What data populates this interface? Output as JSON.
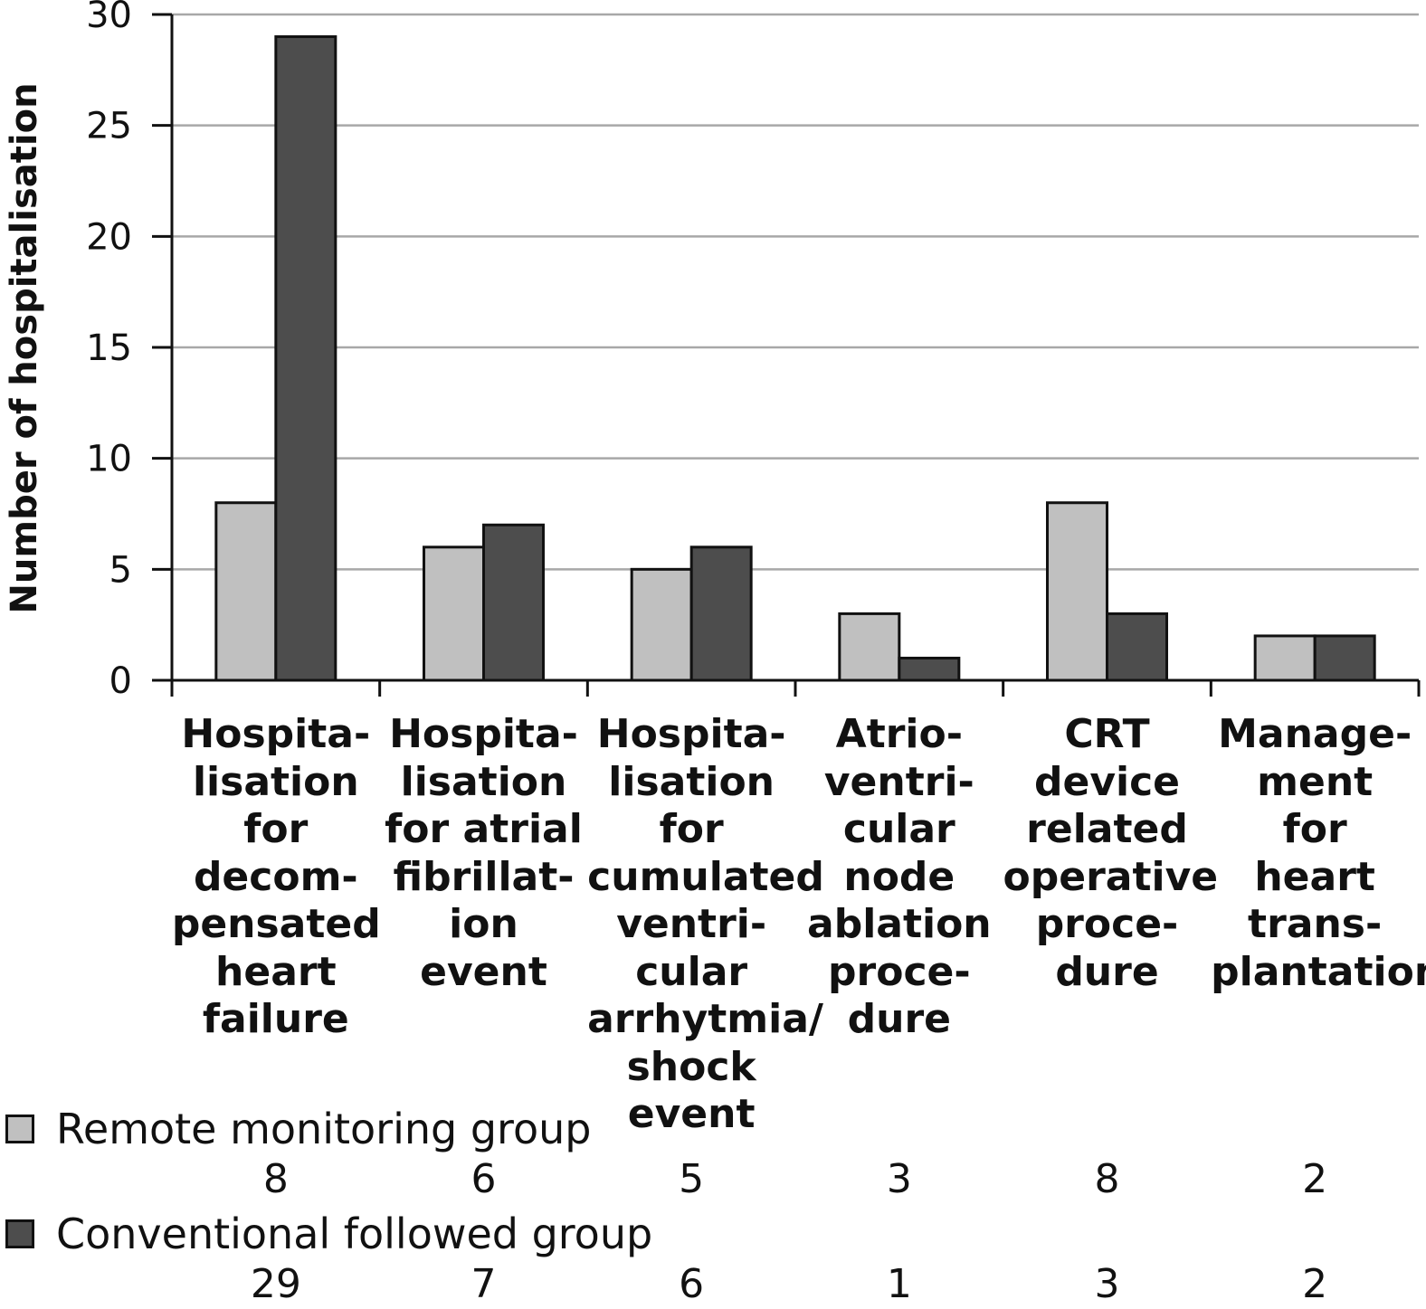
{
  "chart_data": {
    "type": "bar",
    "ylabel": "Number of hospitalisation",
    "ylim": [
      0,
      30
    ],
    "yticks": [
      0,
      5,
      10,
      15,
      20,
      25,
      30
    ],
    "grid": true,
    "categories": [
      "Hospita-\nlisation\nfor\ndecom-\npensated\nheart failure",
      "Hospita-\nlisation\nfor atrial\nfibrillat-\nion\nevent",
      "Hospita-\nlisation\nfor\ncumulated\nventri-\ncular\narrhytmia/\nshock event",
      "Atrio-\nventri-\ncular\nnode\nablation\nproce-\ndure",
      "CRT\ndevice\nrelated\noperative\nproce-\ndure",
      "Manage-\nment\nfor\nheart\ntrans-\nplantation"
    ],
    "series": [
      {
        "name": "Remote monitoring group",
        "color": "#c0c0c0",
        "values": [
          8,
          6,
          5,
          3,
          8,
          2
        ]
      },
      {
        "name": "Conventional followed group",
        "color": "#4d4d4d",
        "values": [
          29,
          7,
          6,
          1,
          3,
          2
        ]
      }
    ],
    "legend_placement": "bottom-table"
  }
}
